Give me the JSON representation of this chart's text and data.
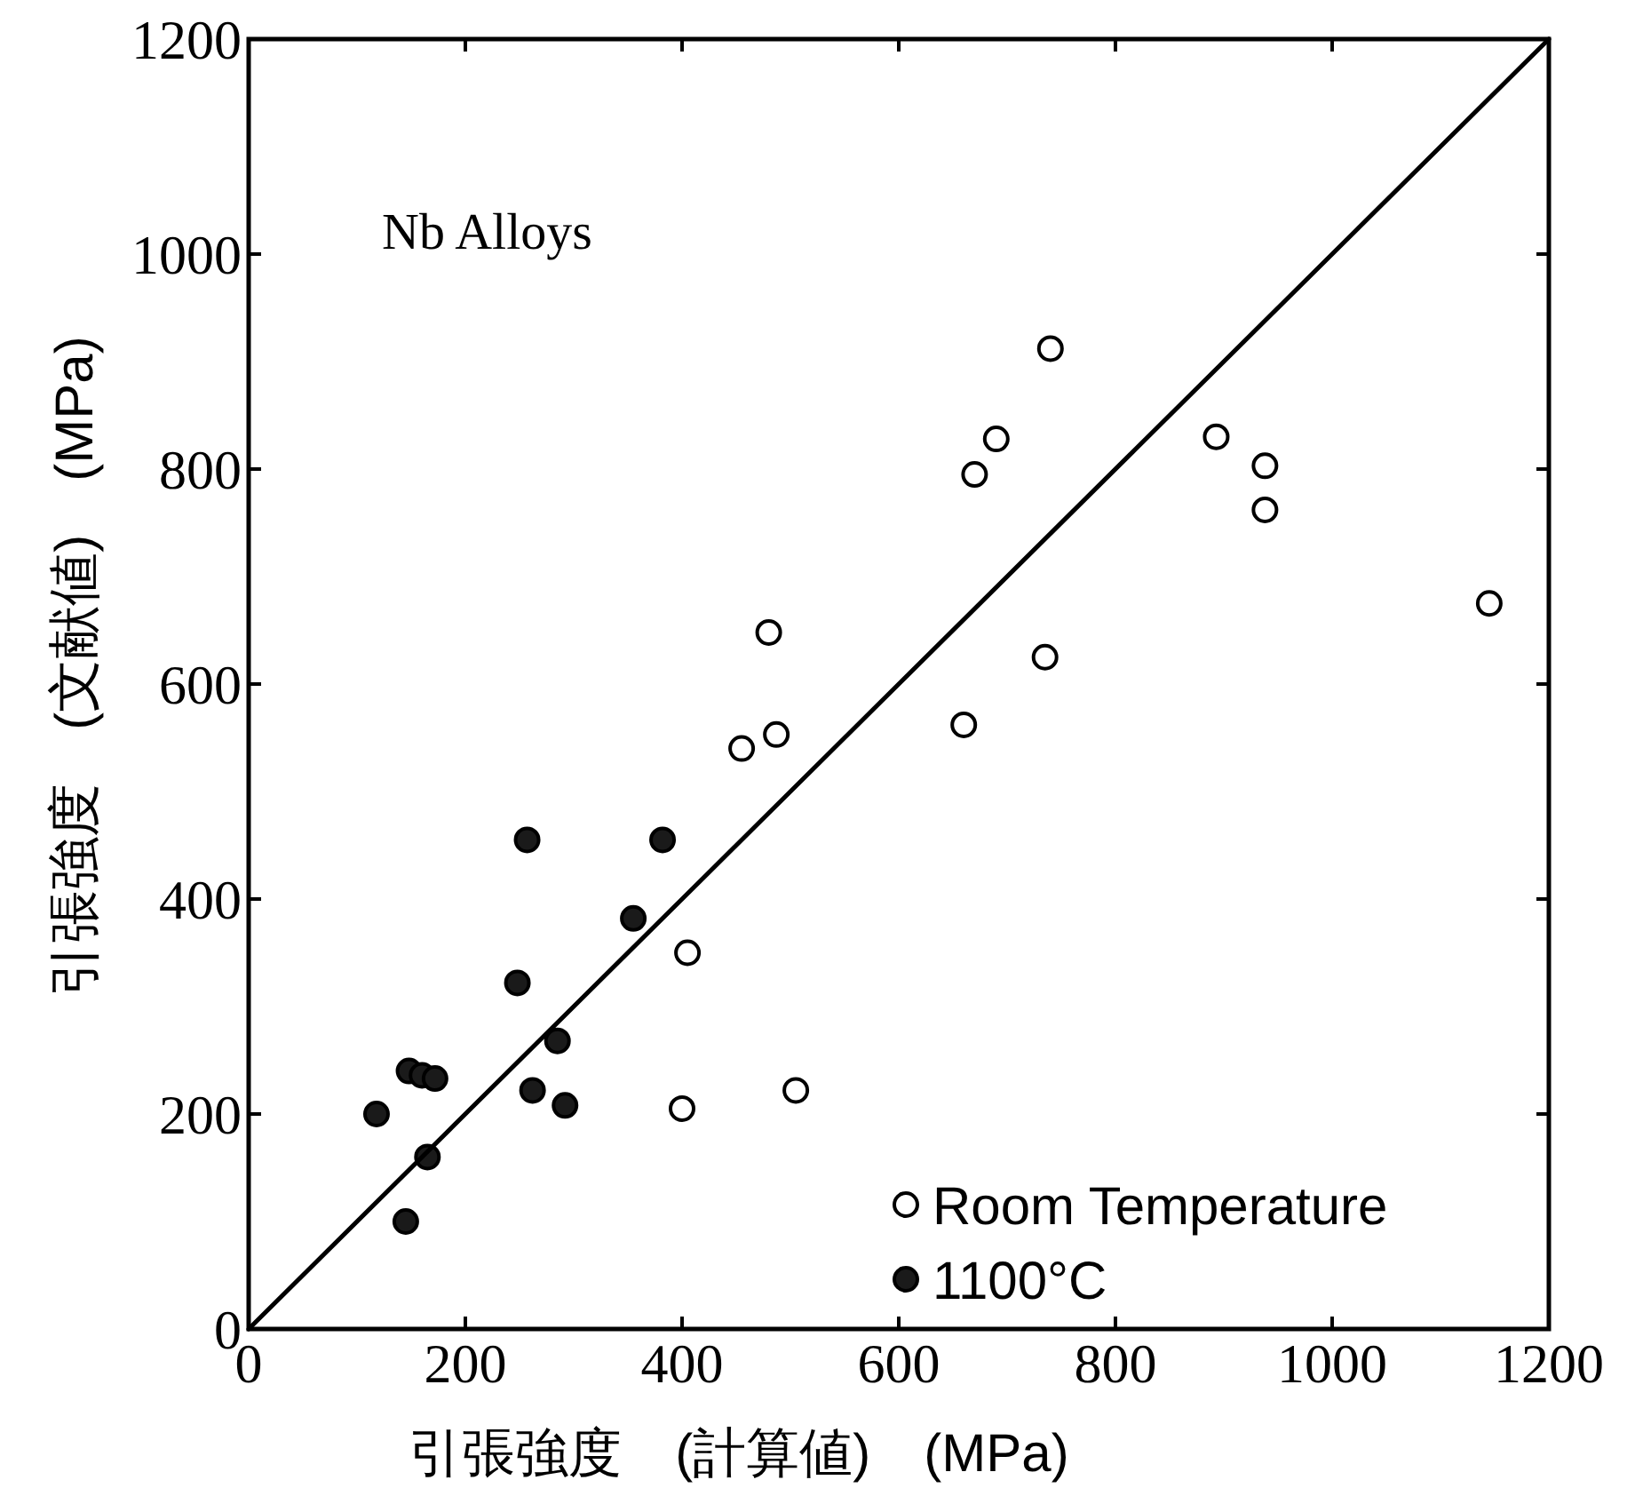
{
  "chart_data": {
    "type": "scatter",
    "xlabel": "引張強度　(計算値)　(MPa)",
    "ylabel": "引張強度　(文献値)　(MPa)",
    "annotations": [
      "Nb Alloys"
    ],
    "xlim": [
      0,
      1200
    ],
    "ylim": [
      0,
      1200
    ],
    "xticks": [
      0,
      200,
      400,
      600,
      800,
      1000,
      1200
    ],
    "yticks": [
      0,
      200,
      400,
      600,
      800,
      1000,
      1200
    ],
    "grid": false,
    "legend": "bottom right",
    "marker": "circle",
    "series": [
      {
        "name": "Room Temperature",
        "color": "#ffffff",
        "x": [
          400,
          405,
          505,
          455,
          480,
          487,
          660,
          670,
          690,
          735,
          740,
          893,
          938,
          938,
          1145
        ],
        "values": [
          205,
          350,
          222,
          540,
          648,
          553,
          562,
          795,
          828,
          625,
          912,
          830,
          803,
          762,
          675
        ]
      },
      {
        "name": "1100°C",
        "color": "#1a1a1a",
        "x": [
          118,
          145,
          148,
          160,
          172,
          165,
          248,
          257,
          262,
          285,
          292,
          355,
          382
        ],
        "values": [
          200,
          100,
          240,
          236,
          233,
          160,
          322,
          455,
          222,
          268,
          208,
          382,
          455
        ]
      },
      {
        "type": "line",
        "color": "#000000",
        "marker": "none",
        "line_style": "solid",
        "x": [
          0,
          1200
        ],
        "values": [
          0,
          1200
        ]
      }
    ]
  }
}
